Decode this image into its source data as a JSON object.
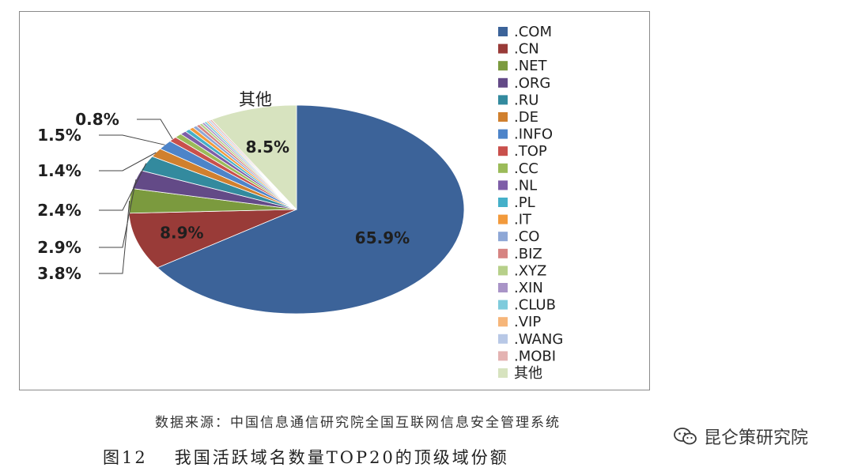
{
  "chart_data": {
    "type": "pie",
    "title": "",
    "start": "top, clockwise",
    "slices": [
      {
        "label": ".COM",
        "value": 65.9,
        "color": "#3c6399",
        "value_label": "65.9%"
      },
      {
        "label": ".CN",
        "value": 8.9,
        "color": "#993b38",
        "value_label": "8.9%"
      },
      {
        "label": ".NET",
        "value": 3.8,
        "color": "#7b9a3e",
        "value_label": "3.8%"
      },
      {
        "label": ".ORG",
        "value": 2.9,
        "color": "#634a87",
        "value_label": "2.9%"
      },
      {
        "label": ".RU",
        "value": 2.4,
        "color": "#338a9e",
        "value_label": "2.4%"
      },
      {
        "label": ".DE",
        "value": 1.4,
        "color": "#d0802e",
        "value_label": "1.4%"
      },
      {
        "label": ".INFO",
        "value": 1.5,
        "color": "#4d84c9",
        "value_label": "1.5%"
      },
      {
        "label": ".TOP",
        "value": 0.8,
        "color": "#c9504c",
        "value_label": "0.8%"
      },
      {
        "label": ".CC",
        "value": 0.7,
        "color": "#9bbb59",
        "value_label": ""
      },
      {
        "label": ".NL",
        "value": 0.6,
        "color": "#7e5ea8",
        "value_label": ""
      },
      {
        "label": ".PL",
        "value": 0.5,
        "color": "#45b0c9",
        "value_label": ""
      },
      {
        "label": ".IT",
        "value": 0.45,
        "color": "#f29a3c",
        "value_label": ""
      },
      {
        "label": ".CO",
        "value": 0.4,
        "color": "#8ea7d6",
        "value_label": ""
      },
      {
        "label": ".BIZ",
        "value": 0.35,
        "color": "#d68482",
        "value_label": ""
      },
      {
        "label": ".XYZ",
        "value": 0.3,
        "color": "#b7d08a",
        "value_label": ""
      },
      {
        "label": ".XIN",
        "value": 0.25,
        "color": "#a994c7",
        "value_label": ""
      },
      {
        "label": ".CLUB",
        "value": 0.25,
        "color": "#7fcbdc",
        "value_label": ""
      },
      {
        "label": ".VIP",
        "value": 0.2,
        "color": "#f6b67a",
        "value_label": ""
      },
      {
        "label": ".WANG",
        "value": 0.2,
        "color": "#b8c8e6",
        "value_label": ""
      },
      {
        "label": ".MOBI",
        "value": 0.2,
        "color": "#e4b3b2",
        "value_label": ""
      },
      {
        "label": "其他",
        "value": 8.5,
        "color": "#d7e3bf",
        "value_label": "8.5%"
      }
    ],
    "legend_position": "right"
  },
  "captions": {
    "source": "数据来源：中国信息通信研究院全国互联网信息安全管理系统",
    "figure_number": "图12",
    "figure_title": "我国活跃域名数量TOP20的顶级域份额"
  },
  "watermark": {
    "text": "昆仑策研究院",
    "icon": "wechat-icon"
  }
}
